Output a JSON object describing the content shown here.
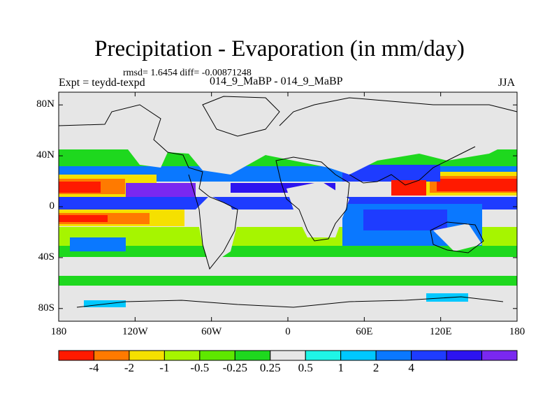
{
  "title": "Precipitation - Evaporation (in mm/day)",
  "stats_text": "rmsd= 1.6454 diff= -0.00871248",
  "expt_label": "Expt = teydd-texpd",
  "center_label": "014_9_MaBP - 014_9_MaBP",
  "season": "JJA",
  "y_axis": [
    {
      "label": "80N",
      "lat": 80
    },
    {
      "label": "40N",
      "lat": 40
    },
    {
      "label": "0",
      "lat": 0
    },
    {
      "label": "40S",
      "lat": -40
    },
    {
      "label": "80S",
      "lat": -80
    }
  ],
  "x_axis": [
    {
      "label": "180",
      "lon": -180
    },
    {
      "label": "120W",
      "lon": -120
    },
    {
      "label": "60W",
      "lon": -60
    },
    {
      "label": "0",
      "lon": 0
    },
    {
      "label": "60E",
      "lon": 60
    },
    {
      "label": "120E",
      "lon": 120
    },
    {
      "label": "180",
      "lon": 180
    }
  ],
  "colorbar": {
    "colors": [
      "#ff1a00",
      "#ff7a00",
      "#f5e000",
      "#a6f500",
      "#5ee800",
      "#1ed81e",
      "#e6e6e6",
      "#1ff5e6",
      "#00c8ff",
      "#0a78ff",
      "#1e3cff",
      "#2c14f0",
      "#7a28f0"
    ],
    "labels": [
      "-4",
      "-2",
      "-1",
      "-0.5",
      "-0.25",
      "0.25",
      "0.5",
      "1",
      "2",
      "4"
    ]
  }
}
